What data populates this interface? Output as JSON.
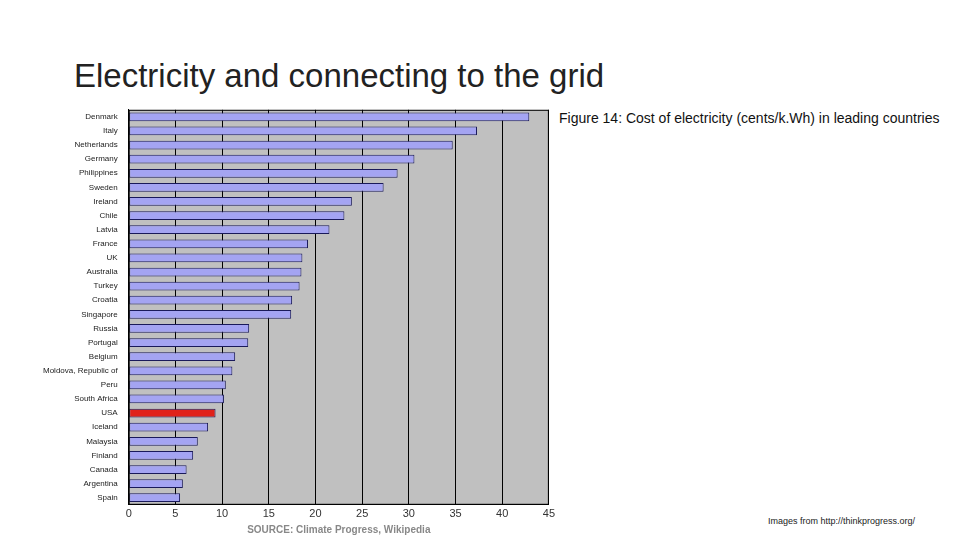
{
  "slide": {
    "title": "Electricity and connecting to the grid",
    "caption": "Figure 14: Cost of electricity (cents/k.Wh) in leading countries",
    "credit": "Images from http://thinkprogress.org/"
  },
  "chart_data": {
    "type": "bar",
    "orientation": "horizontal",
    "annotations": [
      "SOURCE: Climate Progress, Wikipedia"
    ],
    "categories": [
      "Denmark",
      "Italy",
      "Netherlands",
      "Germany",
      "Philippines",
      "Sweden",
      "Ireland",
      "Chile",
      "Latvia",
      "France",
      "UK",
      "Australia",
      "Turkey",
      "Croatia",
      "Singapore",
      "Russia",
      "Portugal",
      "Belgium",
      "Moldova, Republic of",
      "Peru",
      "South Africa",
      "USA",
      "Iceland",
      "Malaysia",
      "Finland",
      "Canada",
      "Argentina",
      "Spain"
    ],
    "values": [
      42.9,
      37.3,
      34.7,
      30.6,
      28.8,
      27.3,
      23.9,
      23.1,
      21.5,
      19.2,
      18.6,
      18.5,
      18.3,
      17.5,
      17.4,
      12.9,
      12.8,
      11.4,
      11.1,
      10.4,
      10.2,
      9.3,
      8.5,
      7.4,
      6.9,
      6.2,
      5.8,
      5.5
    ],
    "colors": [
      "#a4a4f2",
      "#a4a4f2",
      "#a4a4f2",
      "#a4a4f2",
      "#a4a4f2",
      "#a4a4f2",
      "#a4a4f2",
      "#a4a4f2",
      "#a4a4f2",
      "#a4a4f2",
      "#a4a4f2",
      "#a4a4f2",
      "#a4a4f2",
      "#a4a4f2",
      "#a4a4f2",
      "#a4a4f2",
      "#a4a4f2",
      "#a4a4f2",
      "#a4a4f2",
      "#a4a4f2",
      "#a4a4f2",
      "#e0221a",
      "#a4a4f2",
      "#a4a4f2",
      "#a4a4f2",
      "#a4a4f2",
      "#a4a4f2",
      "#a4a4f2"
    ],
    "xlim": [
      0,
      45
    ],
    "xticks": [
      0,
      5,
      10,
      15,
      20,
      25,
      30,
      35,
      40,
      45
    ],
    "grid": true
  }
}
